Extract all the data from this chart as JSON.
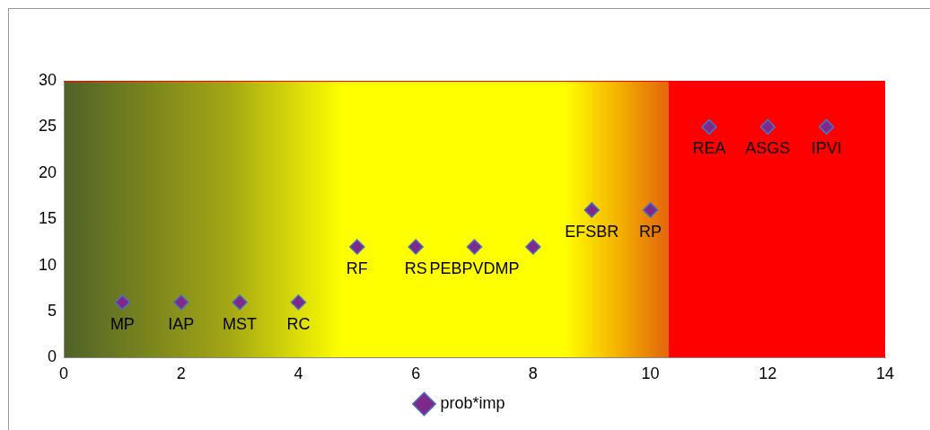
{
  "chart_data": {
    "type": "scatter",
    "x": [
      1,
      2,
      3,
      4,
      5,
      6,
      7,
      8,
      9,
      10,
      11,
      12,
      13
    ],
    "series": [
      {
        "name": "prob*imp",
        "color": "#7f2a8a",
        "values": [
          6,
          6,
          6,
          6,
          12,
          12,
          12,
          12,
          16,
          16,
          25,
          25,
          25
        ]
      }
    ],
    "xlim": [
      0,
      14
    ],
    "xticks": [
      0,
      2,
      4,
      6,
      8,
      10,
      12,
      14
    ],
    "ylim": [
      0,
      30
    ],
    "yticks": [
      0,
      5,
      10,
      15,
      20,
      25,
      30
    ],
    "grid": false,
    "legend": "bottom",
    "marker": "diamond",
    "annotations": [
      {
        "text": "MP",
        "x": 1,
        "y": 6
      },
      {
        "text": "IAP",
        "x": 2,
        "y": 6
      },
      {
        "text": "MST",
        "x": 3,
        "y": 6
      },
      {
        "text": "RC",
        "x": 4,
        "y": 6
      },
      {
        "text": "RF",
        "x": 5,
        "y": 12
      },
      {
        "text": "RS",
        "x": 6,
        "y": 12
      },
      {
        "text": "PEBPVDMP",
        "x": 7,
        "y": 12
      },
      {
        "text": "EFSBR",
        "x": 9,
        "y": 16
      },
      {
        "text": "RP",
        "x": 10,
        "y": 16
      },
      {
        "text": "REA",
        "x": 11,
        "y": 25
      },
      {
        "text": "ASGS",
        "x": 12,
        "y": 25
      },
      {
        "text": "IPVI",
        "x": 13,
        "y": 25
      }
    ]
  }
}
